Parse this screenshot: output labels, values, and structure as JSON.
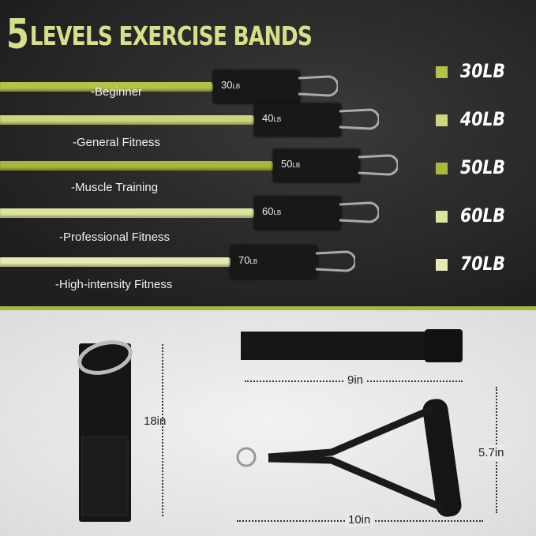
{
  "title": {
    "number": "5",
    "text": "LEVELS EXERCISE BANDS"
  },
  "bands": [
    {
      "weight": "30",
      "unit": "LB",
      "level": "-Beginner",
      "legend": "30LB",
      "color": "#b5c24a"
    },
    {
      "weight": "40",
      "unit": "LB",
      "level": "-General Fitness",
      "legend": "40LB",
      "color": "#cdd67a"
    },
    {
      "weight": "50",
      "unit": "LB",
      "level": "-Muscle Training",
      "legend": "50LB",
      "color": "#a9b83c"
    },
    {
      "weight": "60",
      "unit": "LB",
      "level": "-Professional  Fitness",
      "legend": "60LB",
      "color": "#dde59a"
    },
    {
      "weight": "70",
      "unit": "LB",
      "level": "-High-intensity Fitness",
      "legend": "70LB",
      "color": "#e6eab2"
    }
  ],
  "accessories": {
    "ankle_strap_length": "18in",
    "door_anchor_length": "9in",
    "handle_height": "5.7in",
    "handle_width": "10in"
  }
}
